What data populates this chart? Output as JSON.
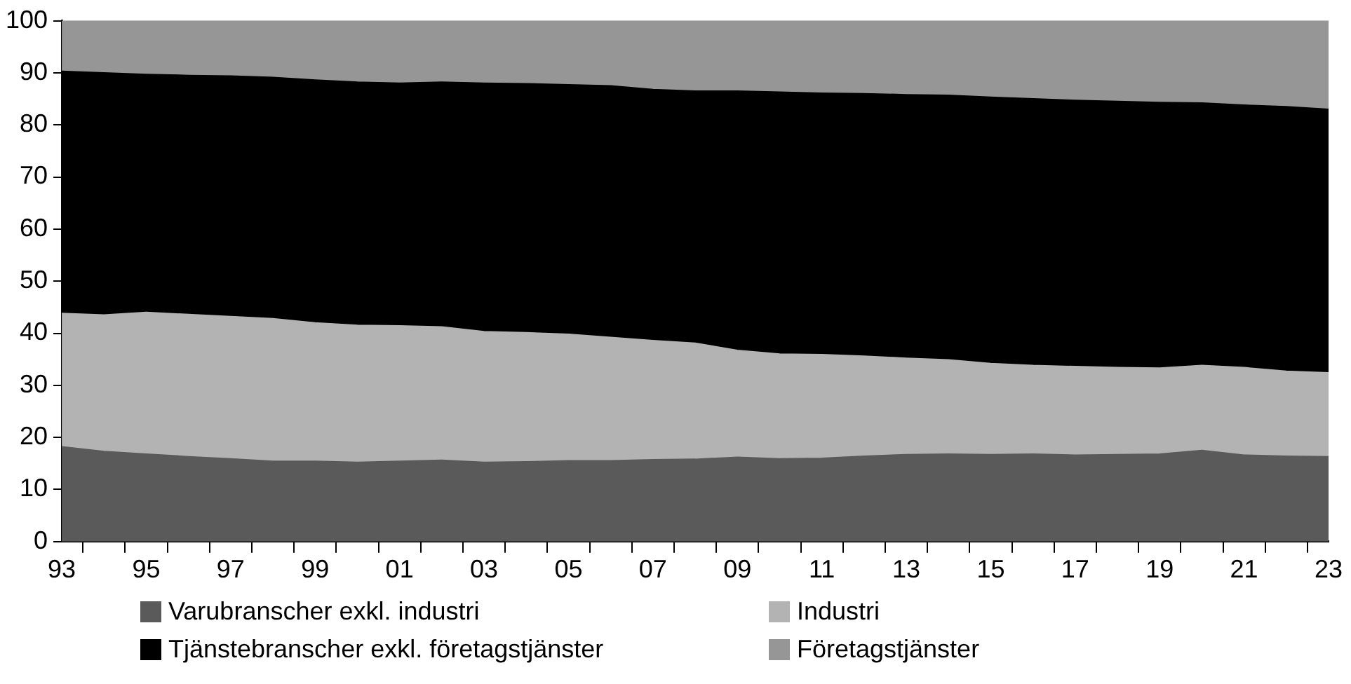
{
  "chart_data": {
    "type": "area",
    "stacked": true,
    "categories": [
      "93",
      null,
      "95",
      null,
      "97",
      null,
      "99",
      null,
      "01",
      null,
      "03",
      null,
      "05",
      null,
      "07",
      null,
      "09",
      null,
      "11",
      null,
      "13",
      null,
      "15",
      null,
      "17",
      null,
      "19",
      null,
      "21",
      null,
      "23"
    ],
    "series": [
      {
        "name": "Varubranscher exkl. industri",
        "color": "#5a5a5a",
        "values": [
          18.2,
          17.3,
          16.8,
          16.3,
          15.9,
          15.4,
          15.4,
          15.2,
          15.4,
          15.6,
          15.2,
          15.3,
          15.5,
          15.5,
          15.7,
          15.8,
          16.2,
          15.9,
          16.0,
          16.4,
          16.7,
          16.8,
          16.7,
          16.8,
          16.6,
          16.7,
          16.8,
          17.5,
          16.6,
          16.4,
          16.3
        ]
      },
      {
        "name": "Industri",
        "color": "#b3b3b3",
        "values": [
          25.6,
          26.2,
          27.2,
          27.3,
          27.3,
          27.4,
          26.6,
          26.3,
          26.0,
          25.6,
          25.1,
          24.8,
          24.3,
          23.7,
          22.9,
          22.3,
          20.5,
          20.1,
          19.9,
          19.2,
          18.5,
          18.1,
          17.5,
          17.0,
          17.0,
          16.7,
          16.5,
          16.3,
          16.8,
          16.3,
          16.1
        ]
      },
      {
        "name": "Tjänstebranscher exkl. företagstjänster",
        "color": "#000000",
        "values": [
          46.5,
          46.5,
          45.7,
          45.9,
          46.2,
          46.3,
          46.6,
          46.7,
          46.6,
          47.0,
          47.7,
          47.8,
          47.9,
          48.3,
          48.2,
          48.4,
          49.8,
          50.3,
          50.2,
          50.4,
          50.6,
          50.8,
          51.1,
          51.2,
          51.1,
          51.1,
          51.0,
          50.4,
          50.4,
          50.8,
          50.6
        ]
      },
      {
        "name": "Företagstjänster",
        "color": "#969696",
        "values": [
          9.7,
          10.0,
          10.3,
          10.5,
          10.6,
          10.9,
          11.4,
          11.8,
          12.0,
          11.8,
          12.0,
          12.1,
          12.3,
          12.5,
          13.2,
          13.5,
          13.5,
          13.7,
          13.9,
          14.0,
          14.2,
          14.3,
          14.7,
          15.0,
          15.3,
          15.5,
          15.7,
          15.8,
          16.2,
          16.5,
          17.0
        ]
      }
    ],
    "ylim": [
      0,
      100
    ],
    "yticks": [
      0,
      10,
      20,
      30,
      40,
      50,
      60,
      70,
      80,
      90,
      100
    ],
    "grid": false,
    "legend": "bottom"
  }
}
